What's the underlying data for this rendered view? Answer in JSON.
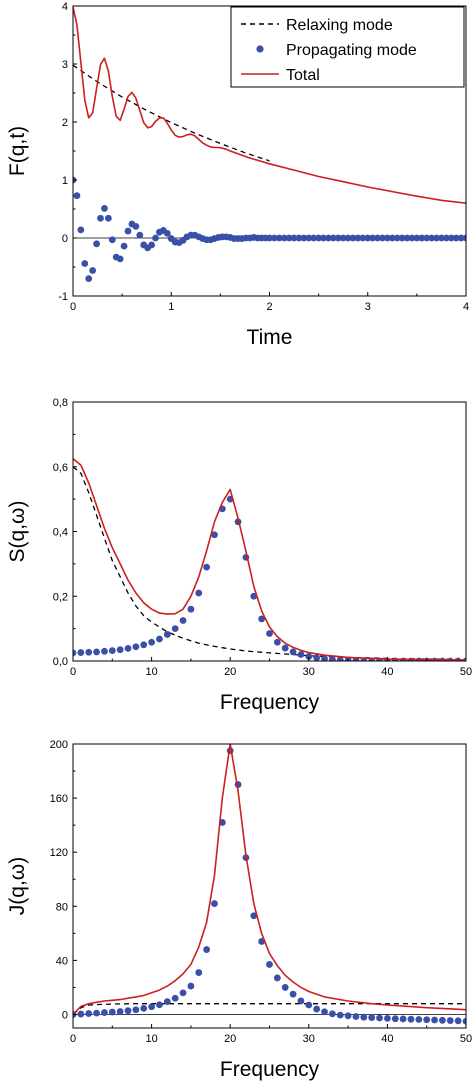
{
  "chart_data": [
    {
      "type": "line",
      "xlabel": "Time",
      "ylabel": "F(q,t)",
      "xlim": [
        0,
        4
      ],
      "ylim": [
        -1,
        4
      ],
      "x_ticks": [
        0,
        1,
        2,
        3,
        4
      ],
      "y_ticks": [
        -1,
        0,
        1,
        2,
        3,
        4
      ],
      "tick_labels_x": [
        "0",
        "1",
        "2",
        "3",
        "4"
      ],
      "tick_labels_y": [
        "-1",
        "0",
        "1",
        "2",
        "3",
        "4"
      ],
      "grid": false,
      "zero_line": true,
      "legend": {
        "position": "top-right",
        "entries": [
          "Relaxing mode",
          "Propagating mode",
          "Total"
        ]
      },
      "series": [
        {
          "name": "Relaxing mode",
          "style": "dashed",
          "color": "#000000",
          "x": [
            0,
            0.25,
            0.5,
            0.75,
            1.0,
            1.25,
            1.5,
            1.75,
            2.0
          ],
          "y": [
            2.98,
            2.69,
            2.43,
            2.2,
            1.99,
            1.8,
            1.63,
            1.47,
            1.33
          ]
        },
        {
          "name": "Propagating mode",
          "style": "dots",
          "color": "#3a4fa8",
          "x": [
            0,
            0.04,
            0.08,
            0.12,
            0.16,
            0.2,
            0.24,
            0.28,
            0.32,
            0.36,
            0.4,
            0.44,
            0.48,
            0.52,
            0.56,
            0.6,
            0.64,
            0.68,
            0.72,
            0.76,
            0.8,
            0.84,
            0.88,
            0.92,
            0.96,
            1.0,
            1.04,
            1.08,
            1.12,
            1.16,
            1.2,
            1.24,
            1.28,
            1.32,
            1.36,
            1.4,
            1.44,
            1.48,
            1.52,
            1.56,
            1.6,
            1.64,
            1.68,
            1.72,
            1.76,
            1.8,
            1.84,
            1.88,
            1.92,
            1.96,
            2.0,
            2.05,
            2.1,
            2.15,
            2.2,
            2.25,
            2.3,
            2.35,
            2.4,
            2.45,
            2.5,
            2.55,
            2.6,
            2.65,
            2.7,
            2.75,
            2.8,
            2.85,
            2.9,
            2.95,
            3.0,
            3.05,
            3.1,
            3.15,
            3.2,
            3.25,
            3.3,
            3.35,
            3.4,
            3.45,
            3.5,
            3.55,
            3.6,
            3.65,
            3.7,
            3.75,
            3.8,
            3.85,
            3.9,
            3.95,
            4.0
          ],
          "y": [
            1.0,
            0.73,
            0.14,
            -0.44,
            -0.7,
            -0.56,
            -0.1,
            0.34,
            0.51,
            0.34,
            -0.03,
            -0.33,
            -0.36,
            -0.14,
            0.12,
            0.24,
            0.2,
            0.05,
            -0.12,
            -0.17,
            -0.12,
            0.0,
            0.1,
            0.13,
            0.08,
            -0.01,
            -0.07,
            -0.08,
            -0.04,
            0.02,
            0.05,
            0.05,
            0.02,
            -0.01,
            -0.03,
            -0.03,
            -0.01,
            0.01,
            0.02,
            0.02,
            0.01,
            -0.01,
            -0.01,
            -0.01,
            0.0,
            0.0,
            0.01,
            0.0,
            0.0,
            0.0,
            0.0,
            0,
            0,
            0,
            0,
            0,
            0,
            0,
            0,
            0,
            0,
            0,
            0,
            0,
            0,
            0,
            0,
            0,
            0,
            0,
            0,
            0,
            0,
            0,
            0,
            0,
            0,
            0,
            0,
            0,
            0,
            0,
            0,
            0,
            0,
            0,
            0,
            0,
            0,
            0,
            0
          ]
        },
        {
          "name": "Total",
          "style": "solid",
          "color": "#cc1f1f",
          "x": [
            0,
            0.04,
            0.08,
            0.12,
            0.16,
            0.2,
            0.24,
            0.28,
            0.32,
            0.36,
            0.4,
            0.44,
            0.48,
            0.52,
            0.56,
            0.6,
            0.64,
            0.68,
            0.72,
            0.76,
            0.8,
            0.84,
            0.88,
            0.92,
            0.96,
            1.0,
            1.04,
            1.08,
            1.12,
            1.16,
            1.2,
            1.24,
            1.28,
            1.32,
            1.36,
            1.4,
            1.44,
            1.48,
            1.52,
            1.56,
            1.6,
            1.7,
            1.8,
            1.9,
            2.0,
            2.25,
            2.5,
            2.75,
            3.0,
            3.25,
            3.5,
            3.75,
            4.0
          ],
          "y": [
            3.98,
            3.68,
            3.02,
            2.38,
            2.07,
            2.16,
            2.58,
            2.99,
            3.1,
            2.88,
            2.44,
            2.1,
            2.03,
            2.22,
            2.44,
            2.51,
            2.41,
            2.2,
            1.99,
            1.9,
            1.92,
            2.01,
            2.07,
            2.07,
            1.98,
            1.86,
            1.77,
            1.74,
            1.75,
            1.78,
            1.79,
            1.76,
            1.7,
            1.64,
            1.6,
            1.57,
            1.56,
            1.56,
            1.55,
            1.53,
            1.5,
            1.44,
            1.38,
            1.33,
            1.28,
            1.17,
            1.06,
            0.97,
            0.88,
            0.8,
            0.72,
            0.65,
            0.6
          ]
        }
      ]
    },
    {
      "type": "line",
      "xlabel": "Frequency",
      "ylabel": "S(q,ω)",
      "xlim": [
        0,
        50
      ],
      "ylim": [
        0,
        0.8
      ],
      "x_ticks": [
        0,
        10,
        20,
        30,
        40,
        50
      ],
      "y_ticks": [
        0,
        0.2,
        0.4,
        0.6,
        0.8
      ],
      "tick_labels_x": [
        "0",
        "10",
        "20",
        "30",
        "40",
        "50"
      ],
      "tick_labels_y": [
        "0,0",
        "0,2",
        "0,4",
        "0,6",
        "0,8"
      ],
      "grid": false,
      "series": [
        {
          "style": "dashed",
          "color": "#000000",
          "x": [
            0,
            1,
            2,
            3,
            4,
            5,
            6,
            7,
            8,
            9,
            10,
            12,
            14,
            16,
            18,
            20,
            22,
            25,
            28,
            30,
            35,
            40,
            45,
            50
          ],
          "y": [
            0.6,
            0.58,
            0.52,
            0.45,
            0.38,
            0.31,
            0.26,
            0.21,
            0.17,
            0.14,
            0.12,
            0.09,
            0.07,
            0.055,
            0.045,
            0.037,
            0.031,
            0.025,
            0.02,
            0.016,
            0.011,
            0.008,
            0.006,
            0.005
          ]
        },
        {
          "style": "dots",
          "color": "#3a4fa8",
          "x": [
            0,
            1,
            2,
            3,
            4,
            5,
            6,
            7,
            8,
            9,
            10,
            11,
            12,
            13,
            14,
            15,
            16,
            17,
            18,
            19,
            20,
            21,
            22,
            23,
            24,
            25,
            26,
            27,
            28,
            29,
            30,
            31,
            32,
            33,
            34,
            35,
            36,
            37,
            38,
            39,
            40,
            41,
            42,
            43,
            44,
            45,
            46,
            47,
            48,
            49,
            50
          ],
          "y": [
            0.025,
            0.026,
            0.027,
            0.028,
            0.03,
            0.032,
            0.035,
            0.039,
            0.044,
            0.05,
            0.058,
            0.068,
            0.082,
            0.1,
            0.125,
            0.16,
            0.21,
            0.29,
            0.39,
            0.47,
            0.5,
            0.43,
            0.32,
            0.2,
            0.13,
            0.085,
            0.058,
            0.04,
            0.028,
            0.02,
            0.014,
            0.01,
            0.007,
            0.005,
            0.003,
            0.002,
            0.001,
            0,
            0,
            0,
            0,
            0,
            0,
            0,
            0,
            0,
            0,
            0,
            0,
            0,
            0
          ]
        },
        {
          "style": "solid",
          "color": "#cc1f1f",
          "x": [
            0,
            1,
            2,
            3,
            4,
            5,
            6,
            7,
            8,
            9,
            10,
            11,
            12,
            13,
            14,
            15,
            16,
            17,
            18,
            19,
            20,
            21,
            22,
            23,
            24,
            25,
            26,
            27,
            28,
            29,
            30,
            32,
            35,
            40,
            45,
            50
          ],
          "y": [
            0.625,
            0.605,
            0.55,
            0.48,
            0.41,
            0.35,
            0.3,
            0.25,
            0.21,
            0.18,
            0.16,
            0.148,
            0.145,
            0.146,
            0.16,
            0.2,
            0.26,
            0.34,
            0.43,
            0.49,
            0.53,
            0.44,
            0.34,
            0.23,
            0.155,
            0.105,
            0.075,
            0.055,
            0.042,
            0.033,
            0.026,
            0.018,
            0.011,
            0.006,
            0.004,
            0.003
          ]
        }
      ]
    },
    {
      "type": "line",
      "xlabel": "Frequency",
      "ylabel": "J(q,ω)",
      "xlim": [
        0,
        50
      ],
      "ylim": [
        -10,
        200
      ],
      "x_ticks": [
        0,
        10,
        20,
        30,
        40,
        50
      ],
      "y_ticks": [
        0,
        40,
        80,
        120,
        160,
        200
      ],
      "tick_labels_x": [
        "0",
        "10",
        "20",
        "30",
        "40",
        "50"
      ],
      "tick_labels_y": [
        "0",
        "40",
        "80",
        "120",
        "160",
        "200"
      ],
      "grid": false,
      "zero_line": true,
      "series": [
        {
          "style": "dashed",
          "color": "#000000",
          "x": [
            0,
            1,
            2,
            4,
            6,
            8,
            10,
            15,
            20,
            25,
            30,
            35,
            40,
            45,
            50
          ],
          "y": [
            0,
            5,
            7,
            7.5,
            7.8,
            8,
            8,
            8,
            8,
            8,
            8,
            8,
            8,
            8,
            8
          ]
        },
        {
          "style": "dots",
          "color": "#3a4fa8",
          "x": [
            0,
            1,
            2,
            3,
            4,
            5,
            6,
            7,
            8,
            9,
            10,
            11,
            12,
            13,
            14,
            15,
            16,
            17,
            18,
            19,
            20,
            21,
            22,
            23,
            24,
            25,
            26,
            27,
            28,
            29,
            30,
            31,
            32,
            33,
            34,
            35,
            36,
            37,
            38,
            39,
            40,
            41,
            42,
            43,
            44,
            45,
            46,
            47,
            48,
            49,
            50
          ],
          "y": [
            0,
            0.3,
            0.7,
            1.0,
            1.4,
            1.8,
            2.2,
            2.8,
            3.5,
            4.5,
            5.7,
            7.2,
            9.5,
            12,
            16,
            21,
            31,
            48,
            82,
            142,
            195,
            170,
            116,
            73,
            54,
            37,
            27,
            20,
            15,
            10,
            7,
            4,
            2,
            0.5,
            -0.5,
            -1,
            -1.5,
            -2,
            -2.3,
            -2.6,
            -2.9,
            -3.1,
            -3.3,
            -3.5,
            -3.7,
            -3.9,
            -4.1,
            -4.3,
            -4.5,
            -4.7,
            -5
          ]
        },
        {
          "style": "solid",
          "color": "#cc1f1f",
          "x": [
            0,
            1,
            2,
            3,
            4,
            5,
            6,
            7,
            8,
            9,
            10,
            11,
            12,
            13,
            14,
            15,
            16,
            17,
            18,
            19,
            20,
            21,
            22,
            23,
            24,
            25,
            26,
            27,
            28,
            29,
            30,
            32,
            35,
            38,
            40,
            45,
            50
          ],
          "y": [
            0,
            6,
            8,
            9,
            10,
            10.5,
            11,
            12,
            13,
            14,
            16,
            18,
            21,
            25,
            30,
            37,
            50,
            68,
            103,
            160,
            200,
            165,
            118,
            82,
            60,
            45,
            36,
            29,
            24,
            20,
            17,
            13,
            10,
            8,
            7,
            5,
            3.5
          ]
        }
      ]
    }
  ]
}
